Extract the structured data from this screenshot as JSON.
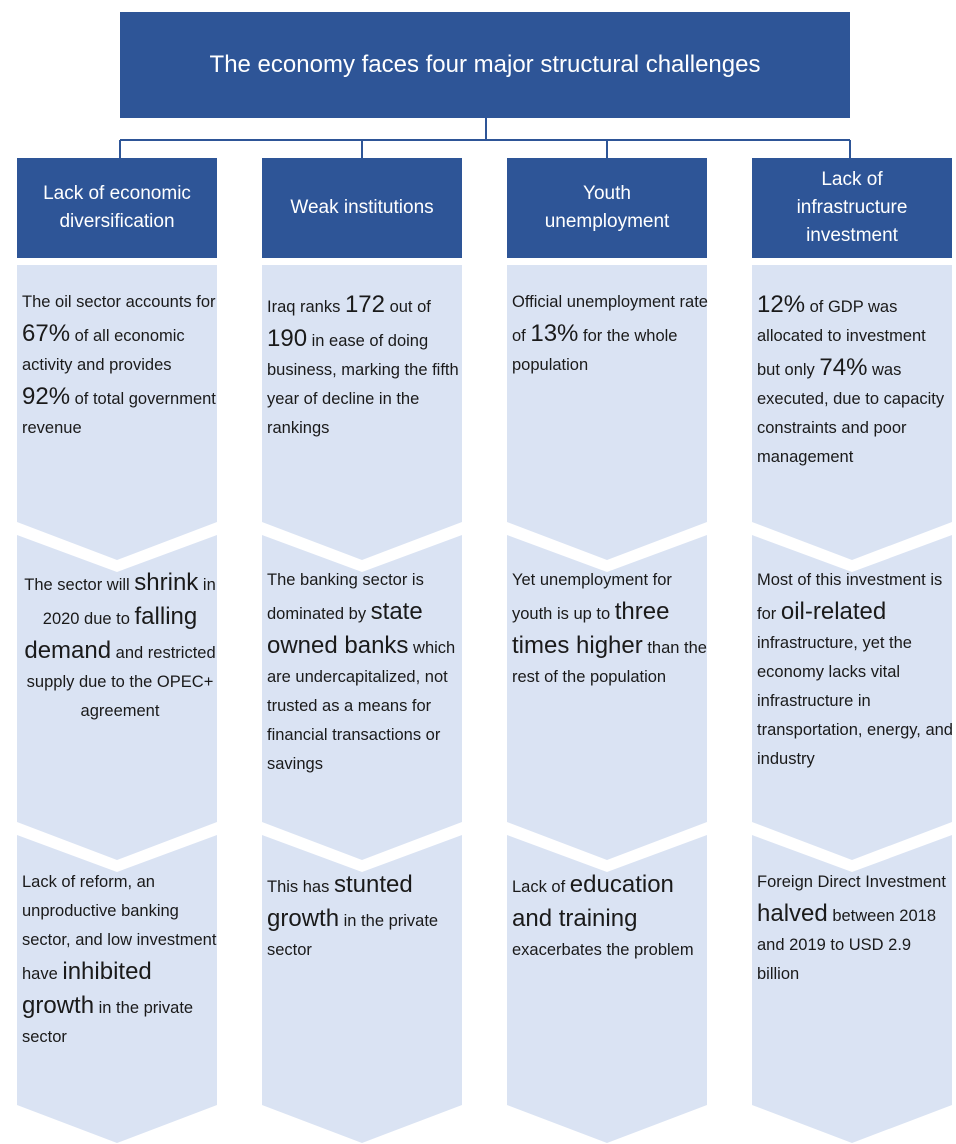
{
  "title": "The economy faces four major structural challenges",
  "columns": [
    {
      "header": "Lack of economic diversification",
      "boxes": [
        {
          "runs": [
            {
              "text": "The oil sector accounts for "
            },
            {
              "text": "67%",
              "large": true
            },
            {
              "text": " of all economic activity and provides "
            },
            {
              "text": "92%",
              "large": true
            },
            {
              "text": " of total government revenue"
            }
          ]
        },
        {
          "align": "center",
          "runs": [
            {
              "text": "The sector will "
            },
            {
              "text": "shrink",
              "large": true
            },
            {
              "text": " in 2020 due to "
            },
            {
              "text": "falling demand",
              "large": true
            },
            {
              "text": " and restricted supply due to the OPEC+ agreement"
            }
          ]
        },
        {
          "runs": [
            {
              "text": "Lack of reform, an unproductive banking sector, and low investment have "
            },
            {
              "text": "inhibited growth",
              "large": true
            },
            {
              "text": " in the private sector"
            }
          ]
        }
      ]
    },
    {
      "header": "Weak institutions",
      "boxes": [
        {
          "runs": [
            {
              "text": "Iraq ranks "
            },
            {
              "text": "172",
              "large": true
            },
            {
              "text": " out of "
            },
            {
              "text": "190",
              "large": true
            },
            {
              "text": " in ease of doing business, marking the fifth year of decline in the rankings"
            }
          ]
        },
        {
          "runs": [
            {
              "text": "The banking sector is dominated by "
            },
            {
              "text": "state owned banks",
              "large": true
            },
            {
              "text": " which are undercapitalized, not trusted as a means for financial transactions or savings"
            }
          ]
        },
        {
          "runs": [
            {
              "text": "This has "
            },
            {
              "text": "stunted growth",
              "large": true
            },
            {
              "text": " in the private sector"
            }
          ]
        }
      ]
    },
    {
      "header": "Youth unemployment",
      "boxes": [
        {
          "runs": [
            {
              "text": "Official unemployment rate of "
            },
            {
              "text": "13%",
              "large": true
            },
            {
              "text": " for the whole population"
            }
          ]
        },
        {
          "runs": [
            {
              "text": "Yet unemployment for youth is up to "
            },
            {
              "text": "three times higher",
              "large": true
            },
            {
              "text": " than the rest of the population"
            }
          ]
        },
        {
          "runs": [
            {
              "text": "Lack of "
            },
            {
              "text": "education and training",
              "large": true
            },
            {
              "text": " exacerbates the problem"
            }
          ]
        }
      ]
    },
    {
      "header": "Lack of infrastructure investment",
      "boxes": [
        {
          "runs": [
            {
              "text": "12%",
              "large": true
            },
            {
              "text": " of GDP was allocated to investment but only "
            },
            {
              "text": "74%",
              "large": true
            },
            {
              "text": " was executed, due to capacity constraints and poor management"
            }
          ]
        },
        {
          "runs": [
            {
              "text": "Most of this investment is for "
            },
            {
              "text": "oil-related",
              "large": true
            },
            {
              "text": " infrastructure, yet the economy lacks vital infrastructure in transportation, energy, and industry"
            }
          ]
        },
        {
          "runs": [
            {
              "text": "Foreign Direct Investment "
            },
            {
              "text": "halved",
              "large": true
            },
            {
              "text": " between 2018 and 2019 to USD 2.9 billion"
            }
          ]
        }
      ]
    }
  ]
}
